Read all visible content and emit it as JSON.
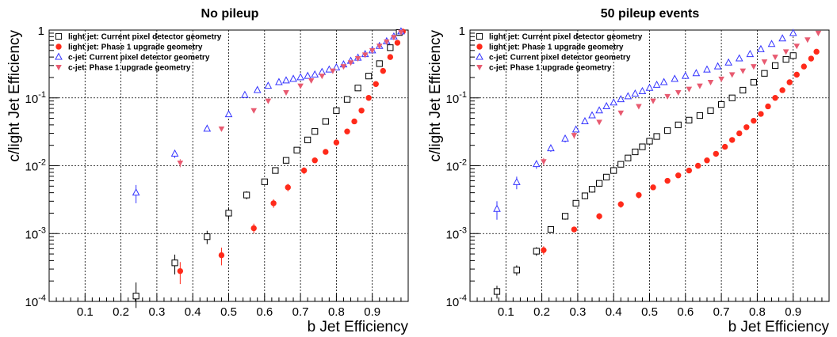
{
  "chart_data": [
    {
      "type": "scatter",
      "title": "No pileup",
      "xlabel": "b Jet Efficiency",
      "ylabel": "c/light Jet Efficiency",
      "xlim": [
        0,
        1
      ],
      "ylim": [
        0.0001,
        1
      ],
      "yscale": "log",
      "grid": true,
      "legend_position": "top-left",
      "x_ticks": [
        "0.1",
        "0.2",
        "0.3",
        "0.4",
        "0.5",
        "0.6",
        "0.7",
        "0.8",
        "0.9"
      ],
      "y_ticks": [
        {
          "base": "10",
          "exp": "-4"
        },
        {
          "base": "10",
          "exp": "-3"
        },
        {
          "base": "10",
          "exp": "-2"
        },
        {
          "base": "10",
          "exp": "-1"
        },
        {
          "base": "1",
          "exp": ""
        }
      ],
      "series": [
        {
          "name": "light jet: Current pixel detector geometry",
          "marker": "open-square",
          "color": "#000000",
          "x": [
            0.242,
            0.35,
            0.44,
            0.5,
            0.55,
            0.6,
            0.63,
            0.66,
            0.69,
            0.72,
            0.74,
            0.77,
            0.8,
            0.83,
            0.86,
            0.89,
            0.92,
            0.95,
            0.975
          ],
          "y": [
            0.00012,
            0.00037,
            0.0009,
            0.002,
            0.0037,
            0.0058,
            0.0085,
            0.012,
            0.017,
            0.024,
            0.032,
            0.045,
            0.065,
            0.095,
            0.14,
            0.21,
            0.32,
            0.55,
            0.92
          ],
          "yerr_low": [
            4e-05,
            0.00012,
            0.0002,
            0.0004,
            0.0005,
            0.0006,
            0.0008,
            0.001,
            0.0015,
            0.002,
            0.0025,
            0.003,
            0.004,
            0.006,
            0.008,
            0.01,
            0.015,
            0.02,
            0.02
          ],
          "yerr_high": [
            7e-05,
            0.00012,
            0.0002,
            0.0004,
            0.0005,
            0.0006,
            0.0008,
            0.001,
            0.0015,
            0.002,
            0.0025,
            0.003,
            0.004,
            0.006,
            0.008,
            0.01,
            0.015,
            0.02,
            0.02
          ]
        },
        {
          "name": "light jet: Phase 1 upgrade geometry",
          "marker": "filled-circle",
          "color": "#ff2a1a",
          "x": [
            0.365,
            0.48,
            0.57,
            0.625,
            0.665,
            0.71,
            0.74,
            0.77,
            0.8,
            0.83,
            0.85,
            0.87,
            0.89,
            0.91,
            0.93,
            0.95,
            0.97,
            0.985
          ],
          "y": [
            0.00028,
            0.00048,
            0.0012,
            0.0028,
            0.0048,
            0.0085,
            0.012,
            0.016,
            0.022,
            0.032,
            0.045,
            0.065,
            0.1,
            0.16,
            0.25,
            0.4,
            0.65,
            0.95
          ],
          "yerr_low": [
            0.0001,
            0.00014,
            0.0002,
            0.0004,
            0.0006,
            0.001,
            0.0012,
            0.0015,
            0.002,
            0.003,
            0.004,
            0.005,
            0.007,
            0.01,
            0.015,
            0.02,
            0.03,
            0.03
          ],
          "yerr_high": [
            0.0001,
            0.00014,
            0.0002,
            0.0004,
            0.0006,
            0.001,
            0.0012,
            0.0015,
            0.002,
            0.003,
            0.004,
            0.005,
            0.007,
            0.01,
            0.015,
            0.02,
            0.03,
            0.03
          ]
        },
        {
          "name": "c-jet: Current pixel detector geometry",
          "marker": "open-triangle-up",
          "color": "#3434ff",
          "x": [
            0.242,
            0.35,
            0.44,
            0.5,
            0.545,
            0.58,
            0.61,
            0.64,
            0.66,
            0.68,
            0.7,
            0.72,
            0.74,
            0.76,
            0.78,
            0.8,
            0.82,
            0.84,
            0.86,
            0.88,
            0.9,
            0.92,
            0.94,
            0.96,
            0.98
          ],
          "y": [
            0.004,
            0.015,
            0.035,
            0.057,
            0.11,
            0.13,
            0.15,
            0.17,
            0.18,
            0.19,
            0.2,
            0.21,
            0.22,
            0.24,
            0.26,
            0.28,
            0.31,
            0.35,
            0.39,
            0.44,
            0.5,
            0.58,
            0.68,
            0.8,
            0.95
          ],
          "yerr_low": [
            0.0012,
            0.002,
            0.003,
            0.004,
            0.005,
            0.005,
            0.005,
            0.005,
            0.005,
            0.005,
            0.005,
            0.005,
            0.005,
            0.005,
            0.005,
            0.005,
            0.005,
            0.005,
            0.005,
            0.005,
            0.005,
            0.005,
            0.005,
            0.005,
            0.005
          ],
          "yerr_high": [
            0.0012,
            0.002,
            0.003,
            0.004,
            0.005,
            0.005,
            0.005,
            0.005,
            0.005,
            0.005,
            0.005,
            0.005,
            0.005,
            0.005,
            0.005,
            0.005,
            0.005,
            0.005,
            0.005,
            0.005,
            0.005,
            0.005,
            0.005,
            0.005,
            0.005
          ]
        },
        {
          "name": "c-jet: Phase 1 upgrade geometry",
          "marker": "filled-triangle-down",
          "color": "#e85a70",
          "x": [
            0.365,
            0.48,
            0.57,
            0.61,
            0.66,
            0.7,
            0.73,
            0.76,
            0.79,
            0.82,
            0.84,
            0.86,
            0.88,
            0.9,
            0.92,
            0.94,
            0.96,
            0.98
          ],
          "y": [
            0.011,
            0.035,
            0.065,
            0.09,
            0.12,
            0.15,
            0.18,
            0.21,
            0.25,
            0.29,
            0.33,
            0.38,
            0.43,
            0.5,
            0.58,
            0.67,
            0.78,
            0.93
          ],
          "yerr_low": [
            0.0015,
            0.003,
            0.004,
            0.005,
            0.005,
            0.005,
            0.005,
            0.005,
            0.005,
            0.005,
            0.005,
            0.005,
            0.005,
            0.005,
            0.005,
            0.005,
            0.005,
            0.005
          ],
          "yerr_high": [
            0.0015,
            0.003,
            0.004,
            0.005,
            0.005,
            0.005,
            0.005,
            0.005,
            0.005,
            0.005,
            0.005,
            0.005,
            0.005,
            0.005,
            0.005,
            0.005,
            0.005,
            0.005
          ]
        }
      ]
    },
    {
      "type": "scatter",
      "title": "50 pileup events",
      "xlabel": "b Jet Efficiency",
      "ylabel": "c/light Jet Efficiency",
      "xlim": [
        0,
        1
      ],
      "ylim": [
        0.0001,
        1
      ],
      "yscale": "log",
      "grid": true,
      "legend_position": "top-left",
      "x_ticks": [
        "0.1",
        "0.2",
        "0.3",
        "0.4",
        "0.5",
        "0.6",
        "0.7",
        "0.8",
        "0.9"
      ],
      "y_ticks": [
        {
          "base": "10",
          "exp": "-4"
        },
        {
          "base": "10",
          "exp": "-3"
        },
        {
          "base": "10",
          "exp": "-2"
        },
        {
          "base": "10",
          "exp": "-1"
        },
        {
          "base": "1",
          "exp": ""
        }
      ],
      "series": [
        {
          "name": "light jet: Current pixel detector geometry",
          "marker": "open-square",
          "color": "#000000",
          "x": [
            0.075,
            0.13,
            0.185,
            0.225,
            0.265,
            0.295,
            0.32,
            0.34,
            0.36,
            0.38,
            0.4,
            0.42,
            0.44,
            0.46,
            0.48,
            0.5,
            0.52,
            0.55,
            0.58,
            0.61,
            0.64,
            0.67,
            0.7,
            0.73,
            0.76,
            0.79,
            0.82,
            0.85,
            0.88,
            0.9
          ],
          "y": [
            0.00014,
            0.00029,
            0.00055,
            0.00115,
            0.0018,
            0.0028,
            0.0036,
            0.0045,
            0.0055,
            0.0068,
            0.0085,
            0.0105,
            0.013,
            0.016,
            0.019,
            0.023,
            0.027,
            0.033,
            0.04,
            0.047,
            0.055,
            0.065,
            0.08,
            0.1,
            0.13,
            0.17,
            0.23,
            0.3,
            0.37,
            0.42
          ],
          "yerr_low": [
            3e-05,
            5e-05,
            8e-05,
            0.00012,
            0.0002,
            0.0003,
            0.0004,
            0.0005,
            0.0005,
            0.0006,
            0.0007,
            0.0008,
            0.001,
            0.001,
            0.0012,
            0.0015,
            0.0018,
            0.002,
            0.0025,
            0.003,
            0.003,
            0.004,
            0.005,
            0.006,
            0.008,
            0.01,
            0.012,
            0.015,
            0.02,
            0.02
          ],
          "yerr_high": [
            3e-05,
            5e-05,
            8e-05,
            0.00012,
            0.0002,
            0.0003,
            0.0004,
            0.0005,
            0.0005,
            0.0006,
            0.0007,
            0.0008,
            0.001,
            0.001,
            0.0012,
            0.0015,
            0.0018,
            0.002,
            0.0025,
            0.003,
            0.003,
            0.004,
            0.005,
            0.006,
            0.008,
            0.01,
            0.012,
            0.015,
            0.02,
            0.02
          ]
        },
        {
          "name": "light jet: Phase 1 upgrade geometry",
          "marker": "filled-circle",
          "color": "#ff2a1a",
          "x": [
            0.205,
            0.29,
            0.36,
            0.42,
            0.47,
            0.51,
            0.55,
            0.58,
            0.61,
            0.635,
            0.66,
            0.685,
            0.71,
            0.73,
            0.75,
            0.77,
            0.79,
            0.81,
            0.83,
            0.85,
            0.87,
            0.89,
            0.91,
            0.93,
            0.95,
            0.965
          ],
          "y": [
            0.00057,
            0.00115,
            0.0018,
            0.0027,
            0.0037,
            0.0048,
            0.006,
            0.0072,
            0.0085,
            0.01,
            0.012,
            0.015,
            0.019,
            0.024,
            0.03,
            0.037,
            0.046,
            0.058,
            0.075,
            0.1,
            0.13,
            0.17,
            0.22,
            0.29,
            0.38,
            0.48
          ],
          "yerr_low": [
            8e-05,
            0.00012,
            0.0002,
            0.0003,
            0.0004,
            0.0005,
            0.0005,
            0.0006,
            0.0007,
            0.0008,
            0.001,
            0.0012,
            0.0015,
            0.0018,
            0.002,
            0.0025,
            0.003,
            0.004,
            0.005,
            0.006,
            0.008,
            0.01,
            0.012,
            0.015,
            0.02,
            0.02
          ],
          "yerr_high": [
            8e-05,
            0.00012,
            0.0002,
            0.0003,
            0.0004,
            0.0005,
            0.0005,
            0.0006,
            0.0007,
            0.0008,
            0.001,
            0.0012,
            0.0015,
            0.0018,
            0.002,
            0.0025,
            0.003,
            0.004,
            0.005,
            0.006,
            0.008,
            0.01,
            0.012,
            0.015,
            0.02,
            0.02
          ]
        },
        {
          "name": "c-jet: Current pixel detector geometry",
          "marker": "open-triangle-up",
          "color": "#3434ff",
          "x": [
            0.075,
            0.13,
            0.185,
            0.225,
            0.265,
            0.295,
            0.32,
            0.34,
            0.36,
            0.38,
            0.4,
            0.42,
            0.44,
            0.46,
            0.48,
            0.5,
            0.52,
            0.54,
            0.57,
            0.6,
            0.63,
            0.66,
            0.69,
            0.72,
            0.75,
            0.78,
            0.81,
            0.84,
            0.87,
            0.9
          ],
          "y": [
            0.0023,
            0.0057,
            0.0105,
            0.018,
            0.025,
            0.034,
            0.045,
            0.055,
            0.065,
            0.075,
            0.085,
            0.095,
            0.105,
            0.115,
            0.125,
            0.14,
            0.155,
            0.17,
            0.19,
            0.21,
            0.23,
            0.26,
            0.29,
            0.33,
            0.38,
            0.44,
            0.52,
            0.62,
            0.75,
            0.9
          ],
          "yerr_low": [
            0.0007,
            0.0012,
            0.0015,
            0.002,
            0.003,
            0.003,
            0.004,
            0.004,
            0.004,
            0.005,
            0.005,
            0.005,
            0.005,
            0.005,
            0.005,
            0.005,
            0.005,
            0.005,
            0.005,
            0.005,
            0.005,
            0.005,
            0.005,
            0.005,
            0.005,
            0.005,
            0.005,
            0.005,
            0.005,
            0.005
          ],
          "yerr_high": [
            0.0007,
            0.0012,
            0.0015,
            0.002,
            0.003,
            0.003,
            0.004,
            0.004,
            0.004,
            0.005,
            0.005,
            0.005,
            0.005,
            0.005,
            0.005,
            0.005,
            0.005,
            0.005,
            0.005,
            0.005,
            0.005,
            0.005,
            0.005,
            0.005,
            0.005,
            0.005,
            0.005,
            0.005,
            0.005,
            0.005
          ]
        },
        {
          "name": "c-jet: Phase 1 upgrade geometry",
          "marker": "filled-triangle-down",
          "color": "#e85a70",
          "x": [
            0.205,
            0.29,
            0.36,
            0.42,
            0.47,
            0.51,
            0.55,
            0.58,
            0.61,
            0.64,
            0.67,
            0.7,
            0.73,
            0.76,
            0.79,
            0.82,
            0.85,
            0.88,
            0.91,
            0.94,
            0.97
          ],
          "y": [
            0.0115,
            0.028,
            0.044,
            0.06,
            0.075,
            0.09,
            0.105,
            0.12,
            0.135,
            0.15,
            0.17,
            0.19,
            0.22,
            0.25,
            0.29,
            0.34,
            0.4,
            0.48,
            0.58,
            0.72,
            0.9
          ],
          "yerr_low": [
            0.0015,
            0.003,
            0.004,
            0.005,
            0.005,
            0.005,
            0.005,
            0.005,
            0.005,
            0.005,
            0.005,
            0.005,
            0.005,
            0.005,
            0.005,
            0.005,
            0.005,
            0.005,
            0.005,
            0.005,
            0.005
          ],
          "yerr_high": [
            0.0015,
            0.003,
            0.004,
            0.005,
            0.005,
            0.005,
            0.005,
            0.005,
            0.005,
            0.005,
            0.005,
            0.005,
            0.005,
            0.005,
            0.005,
            0.005,
            0.005,
            0.005,
            0.005,
            0.005,
            0.005
          ]
        }
      ]
    }
  ]
}
